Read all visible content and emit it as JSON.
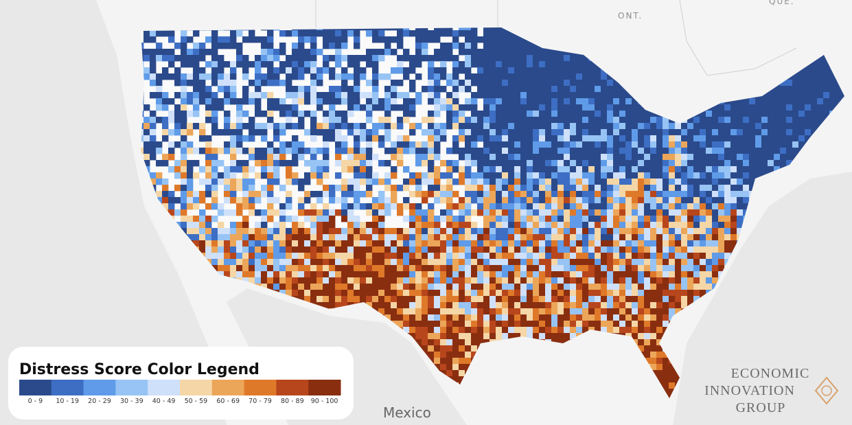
{
  "map": {
    "labels": [
      "ONT.",
      "QUE.",
      "Mexico"
    ]
  },
  "legend": {
    "title": "Distress Score Color Legend",
    "items": [
      {
        "label": "0 - 9",
        "color": "#2b4a8b"
      },
      {
        "label": "10 - 19",
        "color": "#3d6ec4"
      },
      {
        "label": "20 - 29",
        "color": "#5f9be8"
      },
      {
        "label": "30 - 39",
        "color": "#97c4f4"
      },
      {
        "label": "40 - 49",
        "color": "#cfe0fa"
      },
      {
        "label": "50 - 59",
        "color": "#f5d6a6"
      },
      {
        "label": "60 - 69",
        "color": "#eca659"
      },
      {
        "label": "70 - 79",
        "color": "#df792a"
      },
      {
        "label": "80 - 89",
        "color": "#b8461c"
      },
      {
        "label": "90 - 100",
        "color": "#8a2e10"
      }
    ]
  },
  "logo": {
    "lines": [
      "ECONOMIC",
      "INNOVATION",
      "GROUP"
    ]
  }
}
